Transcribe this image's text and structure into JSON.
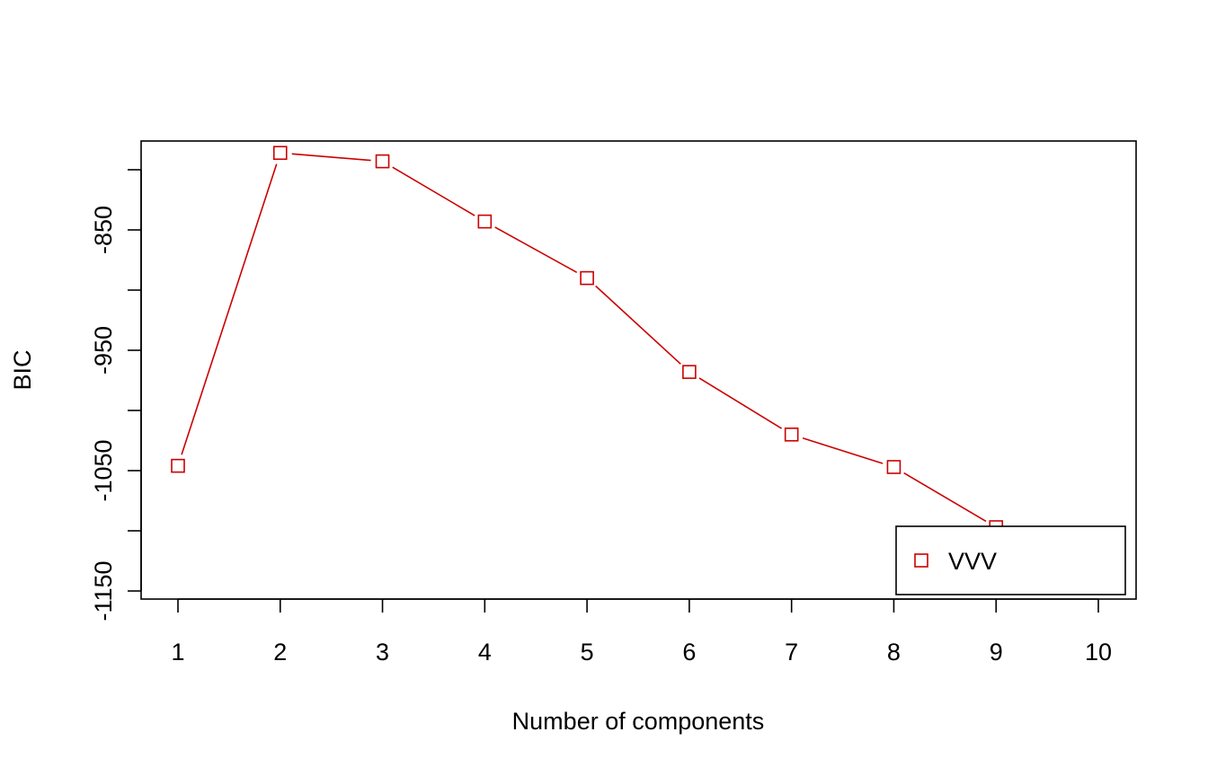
{
  "chart_data": {
    "type": "line",
    "xlabel": "Number of components",
    "ylabel": "BIC",
    "x": [
      1,
      2,
      3,
      4,
      5,
      6,
      7,
      8,
      9,
      10
    ],
    "xlim": [
      1,
      10
    ],
    "ylim": [
      -1150,
      -800
    ],
    "y_ticks": [
      -1150,
      -1100,
      -1050,
      -1000,
      -950,
      -900,
      -850,
      -800
    ],
    "y_tick_labels": [
      "-1150",
      "",
      "-1050",
      "",
      "-950",
      "",
      "-850",
      ""
    ],
    "x_tick_labels": [
      "1",
      "2",
      "3",
      "4",
      "5",
      "6",
      "7",
      "8",
      "9",
      "10"
    ],
    "series": [
      {
        "name": "VVV",
        "values": [
          -1046,
          -786,
          -793,
          -843,
          -890,
          -968,
          -1020,
          -1047,
          -1097,
          null
        ],
        "color": "#CC0000",
        "marker": "open-square"
      }
    ],
    "grid": false,
    "legend": {
      "position": "bottom-right",
      "entries": [
        "VVV"
      ]
    }
  }
}
